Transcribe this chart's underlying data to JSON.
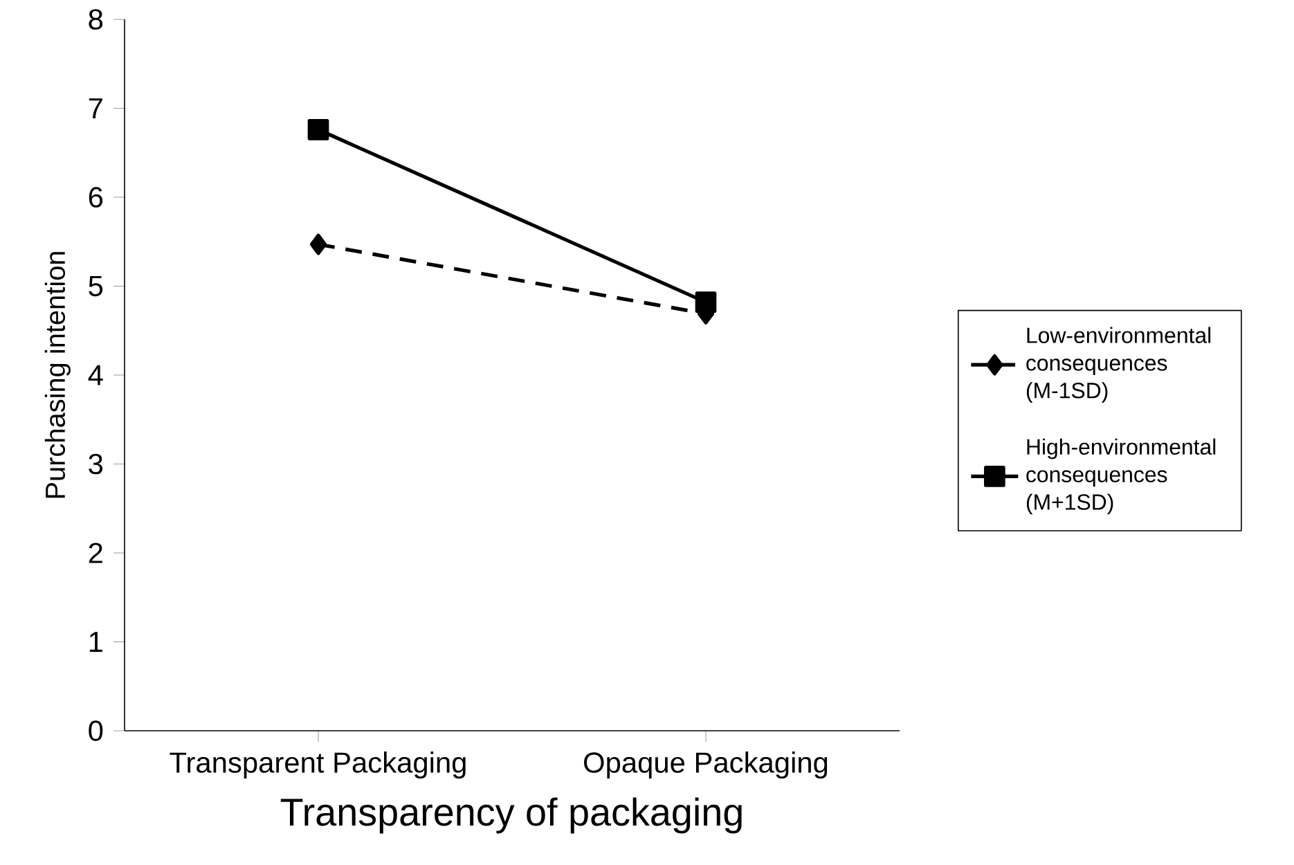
{
  "chart_data": {
    "type": "line",
    "xlabel": "Transparency of packaging",
    "ylabel": "Purchasing intention",
    "categories": [
      "Transparent Packaging",
      "Opaque Packaging"
    ],
    "series": [
      {
        "name": "Low-environmental consequences (M-1SD)",
        "color": "#000000",
        "values": [
          5.47,
          4.69
        ],
        "marker": "diamond",
        "line_style": "dashed"
      },
      {
        "name": "High-environmental consequences (M+1SD)",
        "color": "#000000",
        "values": [
          6.76,
          4.82
        ],
        "marker": "square",
        "line_style": "solid"
      }
    ],
    "ylim": [
      0,
      8
    ],
    "yticks": [
      0,
      1,
      2,
      3,
      4,
      5,
      6,
      7,
      8
    ],
    "legend": "right"
  }
}
